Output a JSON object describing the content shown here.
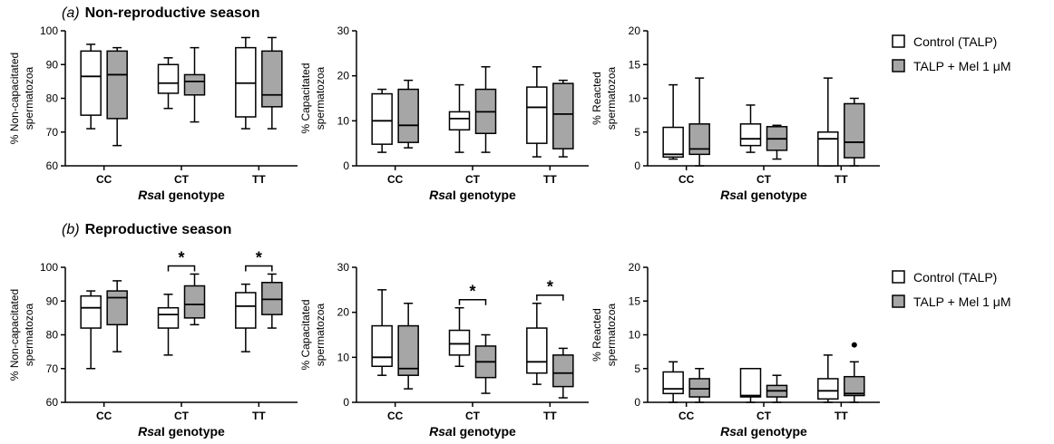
{
  "panels": [
    {
      "letter": "(a)",
      "title": "Non-reproductive season"
    },
    {
      "letter": "(b)",
      "title": "Reproductive season"
    }
  ],
  "legend": [
    {
      "label": "Control (TALP)",
      "color": "#ffffff"
    },
    {
      "label": "TALP + Mel 1 μM",
      "color": "#a6a6a6"
    }
  ],
  "colors": {
    "control": "#ffffff",
    "mel": "#a6a6a6",
    "stroke": "#000000"
  },
  "chart_data": [
    {
      "type": "box",
      "panel": "a",
      "ylabel_lines": [
        "% Non-capacitated",
        "spermatozoa"
      ],
      "xlabel_italic": "Rsa",
      "xlabel_rest": "I genotype",
      "categories": [
        "CC",
        "CT",
        "TT"
      ],
      "ylim": [
        60,
        100
      ],
      "yticks": [
        60,
        70,
        80,
        90,
        100
      ],
      "series": [
        {
          "name": "Control (TALP)",
          "boxes": [
            {
              "min": 71,
              "q1": 75,
              "median": 86.5,
              "q3": 94,
              "max": 96
            },
            {
              "min": 77,
              "q1": 81.5,
              "median": 84.5,
              "q3": 90,
              "max": 92
            },
            {
              "min": 71,
              "q1": 74.5,
              "median": 84.5,
              "q3": 95,
              "max": 98
            }
          ]
        },
        {
          "name": "TALP + Mel 1 μM",
          "boxes": [
            {
              "min": 66,
              "q1": 74,
              "median": 87,
              "q3": 94,
              "max": 95
            },
            {
              "min": 73,
              "q1": 81,
              "median": 85,
              "q3": 87,
              "max": 95
            },
            {
              "min": 71,
              "q1": 77.5,
              "median": 81,
              "q3": 94,
              "max": 98
            }
          ]
        }
      ],
      "significance": [],
      "outliers": []
    },
    {
      "type": "box",
      "panel": "a",
      "ylabel_lines": [
        "% Capacitated",
        "spermatozoa"
      ],
      "xlabel_italic": "Rsa",
      "xlabel_rest": "I genotype",
      "categories": [
        "CC",
        "CT",
        "TT"
      ],
      "ylim": [
        0,
        30
      ],
      "yticks": [
        0,
        10,
        20,
        30
      ],
      "series": [
        {
          "name": "Control (TALP)",
          "boxes": [
            {
              "min": 3,
              "q1": 4.8,
              "median": 10,
              "q3": 16,
              "max": 17
            },
            {
              "min": 3,
              "q1": 8,
              "median": 10.5,
              "q3": 12,
              "max": 18
            },
            {
              "min": 2,
              "q1": 5,
              "median": 13,
              "q3": 17.5,
              "max": 22
            }
          ]
        },
        {
          "name": "TALP + Mel 1 μM",
          "boxes": [
            {
              "min": 4,
              "q1": 5.2,
              "median": 9,
              "q3": 17,
              "max": 19
            },
            {
              "min": 3,
              "q1": 7.2,
              "median": 12,
              "q3": 17,
              "max": 22
            },
            {
              "min": 2,
              "q1": 3.8,
              "median": 11.5,
              "q3": 18.3,
              "max": 19
            }
          ]
        }
      ],
      "significance": [],
      "outliers": []
    },
    {
      "type": "box",
      "panel": "a",
      "ylabel_lines": [
        "% Reacted",
        "spermatozoa"
      ],
      "xlabel_italic": "Rsa",
      "xlabel_rest": "I genotype",
      "categories": [
        "CC",
        "CT",
        "TT"
      ],
      "ylim": [
        0,
        20
      ],
      "yticks": [
        0,
        5,
        10,
        15,
        20
      ],
      "series": [
        {
          "name": "Control (TALP)",
          "boxes": [
            {
              "min": 1,
              "q1": 1.3,
              "median": 1.7,
              "q3": 5.7,
              "max": 12
            },
            {
              "min": 2,
              "q1": 3,
              "median": 4,
              "q3": 6.2,
              "max": 9
            },
            {
              "min": 0,
              "q1": 0,
              "median": 4,
              "q3": 5,
              "max": 13
            }
          ]
        },
        {
          "name": "TALP + Mel 1 μM",
          "boxes": [
            {
              "min": 0,
              "q1": 1.7,
              "median": 2.5,
              "q3": 6.2,
              "max": 13
            },
            {
              "min": 1,
              "q1": 2.3,
              "median": 4,
              "q3": 5.8,
              "max": 6
            },
            {
              "min": 0,
              "q1": 1.2,
              "median": 3.5,
              "q3": 9.2,
              "max": 10
            }
          ]
        }
      ],
      "significance": [],
      "outliers": []
    },
    {
      "type": "box",
      "panel": "b",
      "ylabel_lines": [
        "% Non-capacitated",
        "spermatozoa"
      ],
      "xlabel_italic": "Rsa",
      "xlabel_rest": "I genotype",
      "categories": [
        "CC",
        "CT",
        "TT"
      ],
      "ylim": [
        60,
        100
      ],
      "yticks": [
        60,
        70,
        80,
        90,
        100
      ],
      "series": [
        {
          "name": "Control (TALP)",
          "boxes": [
            {
              "min": 70,
              "q1": 82,
              "median": 88,
              "q3": 91.5,
              "max": 93
            },
            {
              "min": 74,
              "q1": 82,
              "median": 86,
              "q3": 88,
              "max": 92
            },
            {
              "min": 75,
              "q1": 82,
              "median": 88.5,
              "q3": 92.5,
              "max": 95
            }
          ]
        },
        {
          "name": "TALP + Mel 1 μM",
          "boxes": [
            {
              "min": 75,
              "q1": 83,
              "median": 91,
              "q3": 93,
              "max": 96
            },
            {
              "min": 83,
              "q1": 85,
              "median": 89,
              "q3": 94.5,
              "max": 98
            },
            {
              "min": 82,
              "q1": 86,
              "median": 90.5,
              "q3": 95.5,
              "max": 98
            }
          ]
        }
      ],
      "significance": [
        {
          "category": 1,
          "label": "*"
        },
        {
          "category": 2,
          "label": "*"
        }
      ],
      "outliers": []
    },
    {
      "type": "box",
      "panel": "b",
      "ylabel_lines": [
        "% Capacitated",
        "spermatozoa"
      ],
      "xlabel_italic": "Rsa",
      "xlabel_rest": "I genotype",
      "categories": [
        "CC",
        "CT",
        "TT"
      ],
      "ylim": [
        0,
        30
      ],
      "yticks": [
        0,
        10,
        20,
        30
      ],
      "series": [
        {
          "name": "Control (TALP)",
          "boxes": [
            {
              "min": 6,
              "q1": 8,
              "median": 10,
              "q3": 17,
              "max": 25
            },
            {
              "min": 8,
              "q1": 10.5,
              "median": 13,
              "q3": 16,
              "max": 21
            },
            {
              "min": 4,
              "q1": 6.5,
              "median": 9,
              "q3": 16.5,
              "max": 22
            }
          ]
        },
        {
          "name": "TALP + Mel 1 μM",
          "boxes": [
            {
              "min": 3,
              "q1": 6,
              "median": 7.5,
              "q3": 17,
              "max": 22
            },
            {
              "min": 2,
              "q1": 5.5,
              "median": 9,
              "q3": 12.5,
              "max": 15
            },
            {
              "min": 1,
              "q1": 3.5,
              "median": 6.5,
              "q3": 10.5,
              "max": 12
            }
          ]
        }
      ],
      "significance": [
        {
          "category": 1,
          "label": "*"
        },
        {
          "category": 2,
          "label": "*"
        }
      ],
      "outliers": []
    },
    {
      "type": "box",
      "panel": "b",
      "ylabel_lines": [
        "% Reacted",
        "spermatozoa"
      ],
      "xlabel_italic": "Rsa",
      "xlabel_rest": "I genotype",
      "categories": [
        "CC",
        "CT",
        "TT"
      ],
      "ylim": [
        0,
        20
      ],
      "yticks": [
        0,
        5,
        10,
        15,
        20
      ],
      "series": [
        {
          "name": "Control (TALP)",
          "boxes": [
            {
              "min": 0,
              "q1": 1.3,
              "median": 2,
              "q3": 4.5,
              "max": 6
            },
            {
              "min": 0,
              "q1": 0.8,
              "median": 1,
              "q3": 5,
              "max": 5
            },
            {
              "min": 0,
              "q1": 0.5,
              "median": 1.7,
              "q3": 3.5,
              "max": 7
            }
          ]
        },
        {
          "name": "TALP + Mel 1 μM",
          "boxes": [
            {
              "min": 0,
              "q1": 0.8,
              "median": 2,
              "q3": 3.5,
              "max": 5
            },
            {
              "min": 0,
              "q1": 0.8,
              "median": 1.7,
              "q3": 2.5,
              "max": 4
            },
            {
              "min": 0,
              "q1": 1,
              "median": 1.3,
              "q3": 3.8,
              "max": 6
            }
          ]
        }
      ],
      "significance": [],
      "outliers": [
        {
          "category": 2,
          "series": 1,
          "value": 8.5
        }
      ]
    }
  ]
}
